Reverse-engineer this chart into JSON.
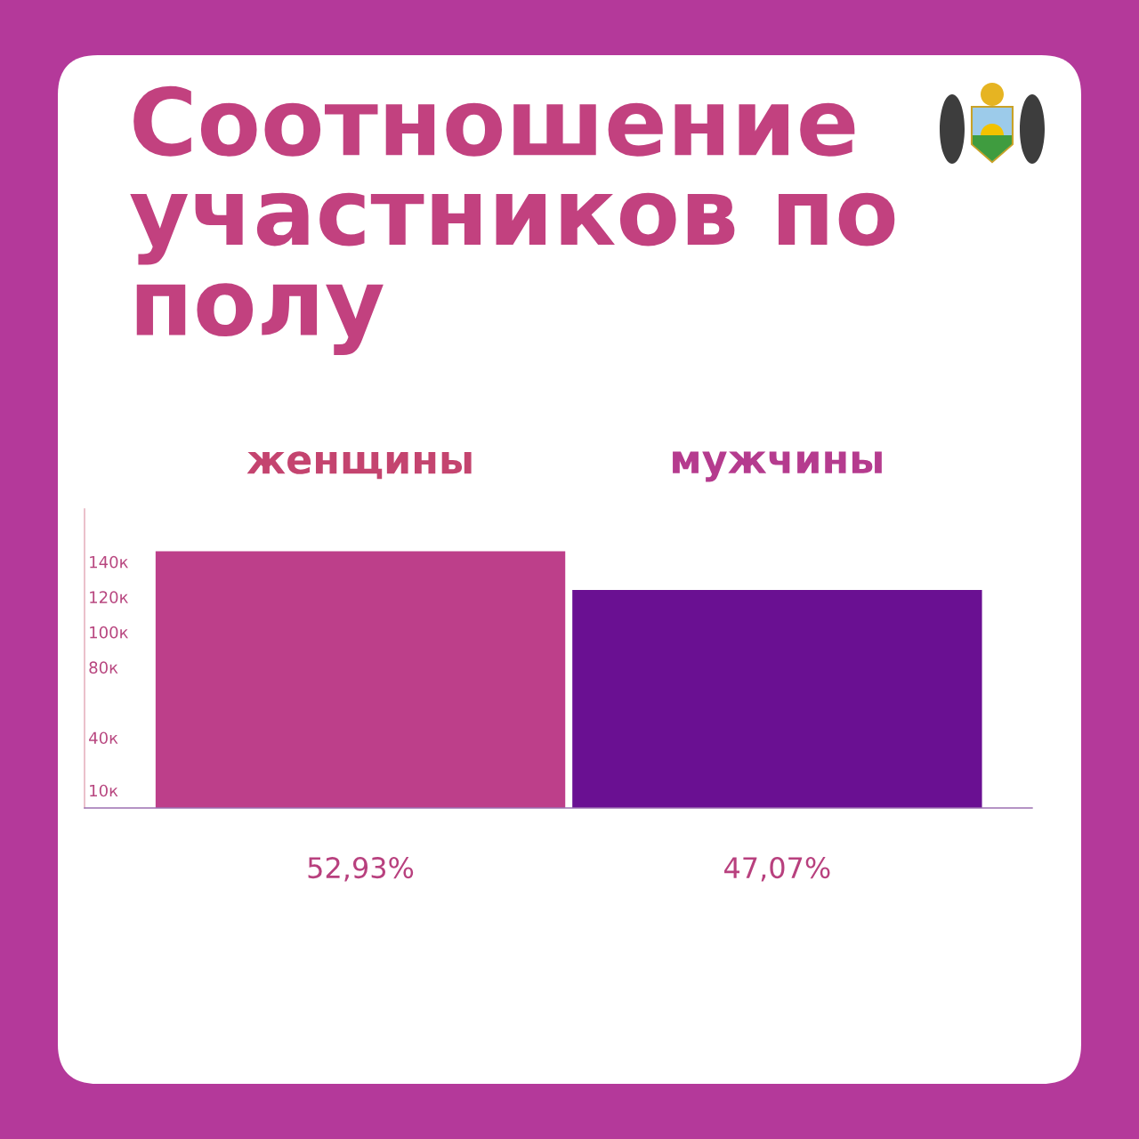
{
  "chart_data": {
    "type": "bar",
    "title": "Соотношение участников по полу",
    "categories": [
      "женщины",
      "мужчины"
    ],
    "values": [
      146,
      124
    ],
    "colors": [
      "#bd3f8a",
      "#6a1092"
    ],
    "annotations": [
      "52,93%",
      "47,07%"
    ],
    "ylim": [
      0,
      170
    ],
    "yticks": [
      {
        "value": 10,
        "label": "10к"
      },
      {
        "value": 40,
        "label": "40к"
      },
      {
        "value": 80,
        "label": "80к"
      },
      {
        "value": 100,
        "label": "100к"
      },
      {
        "value": 120,
        "label": "120к"
      },
      {
        "value": 140,
        "label": "140к"
      }
    ]
  }
}
